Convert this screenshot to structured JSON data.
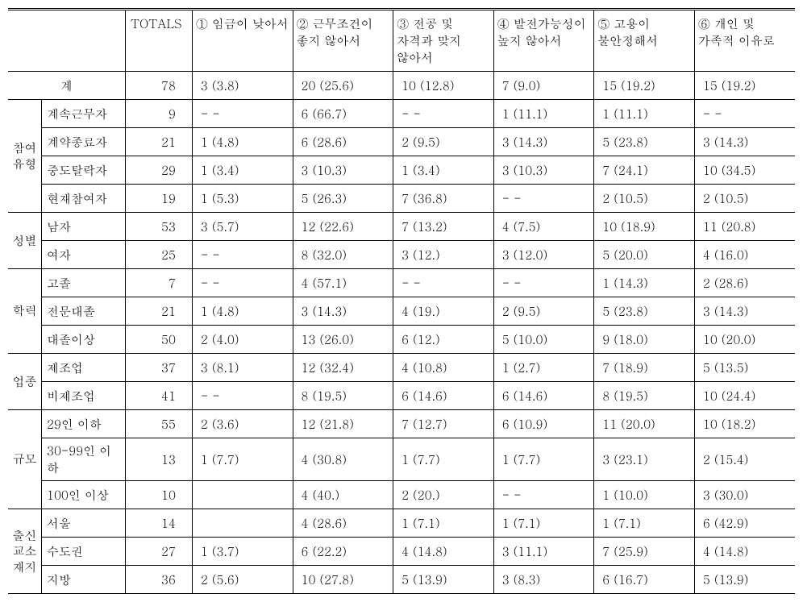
{
  "headers": {
    "totals": "TOTALS",
    "c1": "① 임금이 낮아서",
    "c2": "② 근무조건이 좋지 않아서",
    "c3": "③ 전공 및 자격과 맞지 않아서",
    "c4": "④ 발전가능성이 높지 않아서",
    "c5": "⑤ 고용이 불안정해서",
    "c6": "⑥ 개인 및 가족적 이유로"
  },
  "total_row": {
    "label": "계",
    "tot": "78",
    "c1": "3 (3.8)",
    "c2": "20 (25.6)",
    "c3": "10 (12.8)",
    "c4": "7 (9.0)",
    "c5": "15 (19.2)",
    "c6": "15 (19.2)"
  },
  "groups": [
    {
      "cat": "참여유형",
      "rows": [
        {
          "sub": "계속근무자",
          "tot": "9",
          "c1": "- -",
          "c2": "6 (66.7)",
          "c3": "- -",
          "c4": "1 (11.1)",
          "c5": "1 (11.1)",
          "c6": "- -"
        },
        {
          "sub": "계약종료자",
          "tot": "21",
          "c1": "1 (4.8)",
          "c2": "6   (28.6)",
          "c3": "2 (9.5)",
          "c4": "3 (14.3)",
          "c5": "5 (23.8)",
          "c6": "3 (14.3)"
        },
        {
          "sub": "중도탈락자",
          "tot": "29",
          "c1": "1 (3.4)",
          "c2": "3 (10.3)",
          "c3": "1 (3.4)",
          "c4": "3 (10.3)",
          "c5": "7 (24.1)",
          "c6": "10 (34.5)"
        },
        {
          "sub": "현재참여자",
          "tot": "19",
          "c1": "1 (5.3)",
          "c2": "5 (26.3)",
          "c3": "7 (36.8)",
          "c4": "- -",
          "c5": "2 (10.5)",
          "c6": "2 (10.5)"
        }
      ]
    },
    {
      "cat": "성별",
      "rows": [
        {
          "sub": "남자",
          "tot": "53",
          "c1": "3 (5.7)",
          "c2": "12 (22.6)",
          "c3": "7 (13.2)",
          "c4": "4 (7.5)",
          "c5": "10 (18.9)",
          "c6": "11 (20.8)"
        },
        {
          "sub": "여자",
          "tot": "25",
          "c1": "- -",
          "c2": "8 (32.0)",
          "c3": "3 (12.)",
          "c4": "3 (12.0)",
          "c5": "5 (20.0)",
          "c6": "4 (16.0)"
        }
      ]
    },
    {
      "cat": "학력",
      "rows": [
        {
          "sub": "고졸",
          "tot": "7",
          "c1": "- -",
          "c2": "4 (57.1)",
          "c3": "- -",
          "c4": "- -",
          "c5": "1 (14.3)",
          "c6": "2 (28.6)"
        },
        {
          "sub": "전문대졸",
          "tot": "21",
          "c1": "1 (4.8)",
          "c2": "3 (14.3)",
          "c3": "4 (19.)",
          "c4": "2 (9.5)",
          "c5": "5 (23.8)",
          "c6": "3 (14.3)"
        },
        {
          "sub": "대졸이상",
          "tot": "50",
          "c1": "2 (4.0)",
          "c2": "13 (26.0)",
          "c3": "6 (12.)",
          "c4": "5 (10.0)",
          "c5": "9 (18.0)",
          "c6": "10 (20.0)"
        }
      ]
    },
    {
      "cat": "업종",
      "rows": [
        {
          "sub": "제조업",
          "tot": "37",
          "c1": "3 (8.1)",
          "c2": "12 (32.4)",
          "c3": "4 (10.8)",
          "c4": "1 (2.7)",
          "c5": "7 (18.9)",
          "c6": "5 (13.5)"
        },
        {
          "sub": "비제조업",
          "tot": "41",
          "c1": "- -",
          "c2": "8 (19.5)",
          "c3": "6 (14.6)",
          "c4": "6 (14.6)",
          "c5": "8 (19.5)",
          "c6": "10 (24.4)"
        }
      ]
    },
    {
      "cat": "규모",
      "rows": [
        {
          "sub": "29인 이하",
          "tot": "55",
          "c1": "2 (3.6)",
          "c2": "12 (21.8)",
          "c3": "7 (12.7)",
          "c4": "6 (10.9)",
          "c5": "11 (20.0)",
          "c6": "10 (18.2)"
        },
        {
          "sub": "30-99인 이하",
          "tot": "13",
          "c1": "1 (7.7)",
          "c2": "4 (30.8)",
          "c3": "1 (7.7)",
          "c4": "1 (7.7)",
          "c5": "3 (23.1)",
          "c6": "2 (15.4)"
        },
        {
          "sub": "100인 이상",
          "tot": "10",
          "c1": "",
          "c2": "4 (40.)",
          "c3": "2 (20.)",
          "c4": "- -",
          "c5": "1 (10.0)",
          "c6": "3 (30.0)"
        }
      ]
    },
    {
      "cat": "출신교소재지",
      "rows": [
        {
          "sub": "서울",
          "tot": "14",
          "c1": "",
          "c2": "4 (28.6)",
          "c3": "1 (7.1)",
          "c4": "1 (7.1)",
          "c5": "1 (7.1)",
          "c6": "6 (42.9)"
        },
        {
          "sub": "수도권",
          "tot": "27",
          "c1": "1 (3.7)",
          "c2": "6 (22.2)",
          "c3": "4 (14.8)",
          "c4": "3 (11.1)",
          "c5": "7 (25.9)",
          "c6": "4 (14.8)"
        },
        {
          "sub": "지방",
          "tot": "36",
          "c1": "2 (5.6)",
          "c2": "10 (27.8)",
          "c3": "5 (13.9)",
          "c4": "3 (8.3)",
          "c5": "6 (16.7)",
          "c6": "5 (13.9)"
        }
      ]
    }
  ]
}
